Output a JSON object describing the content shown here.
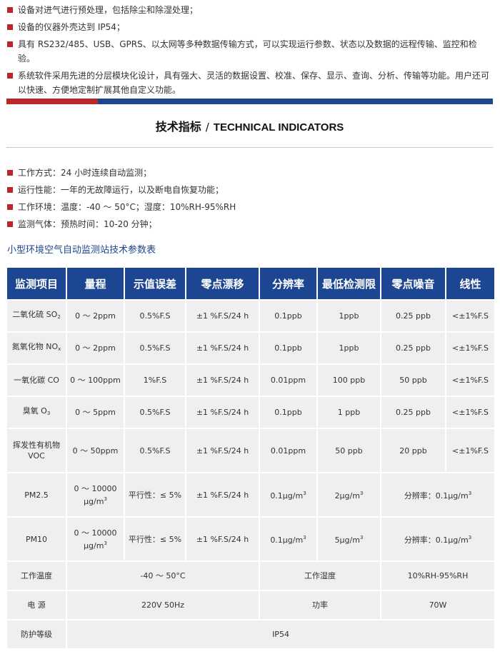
{
  "top_bullets": [
    "设备对进气进行预处理，包括除尘和除湿处理；",
    "设备的仪器外壳达到 IP54；",
    "具有 RS232/485、USB、GPRS、以太网等多种数据传输方式，可以实现运行参数、状态以及数据的远程传输、监控和检验。",
    "系统软件采用先进的分层模块化设计，具有强大、灵活的数据设置、校准、保存、显示、查询、分析、传输等功能。用户还可以快速、方便地定制扩展其他自定义功能。"
  ],
  "section": {
    "title_cn": "技术指标",
    "slash": "/",
    "title_en": "TECHNICAL INDICATORS"
  },
  "mid_bullets": [
    "工作方式：24 小时连续自动监测；",
    "运行性能：一年的无故障运行，以及断电自恢复功能；",
    "工作环境：温度：-40 ～ 50°C；湿度：10%RH-95%RH",
    "监测气体：预热时间：10-20 分钟；"
  ],
  "table_caption": "小型环境空气自动监测站技术参数表",
  "table": {
    "headers": [
      "监测项目",
      "量程",
      "示值误差",
      "零点漂移",
      "分辨率",
      "最低检测限",
      "零点噪音",
      "线性"
    ],
    "so2": {
      "name": "二氧化硫 SO",
      "name_sub": "2",
      "range": "0 ～ 2ppm",
      "error": "0.5%F.S",
      "drift": "±1 %F.S/24 h",
      "resolution": "0.1ppb",
      "lod": "1ppb",
      "noise": "0.25 ppb",
      "linearity": "<±1%F.S"
    },
    "nox": {
      "name": "氮氧化物 NO",
      "name_sub": "x",
      "range": "0 ～ 2ppm",
      "error": "0.5%F.S",
      "drift": "±1 %F.S/24 h",
      "resolution": "0.1ppb",
      "lod": "1ppb",
      "noise": "0.25 ppb",
      "linearity": "<±1%F.S"
    },
    "co": {
      "name": "一氧化碳 CO",
      "range": "0 ～ 100ppm",
      "error": "1%F.S",
      "drift": "±1 %F.S/24 h",
      "resolution": "0.01ppm",
      "lod": "100 ppb",
      "noise": "50 ppb",
      "linearity": "<±1%F.S"
    },
    "o3": {
      "name": "臭氧 O",
      "name_sub": "3",
      "range": "0 ～ 5ppm",
      "error": "0.5%F.S",
      "drift": "±1 %F.S/24 h",
      "resolution": "0.1ppb",
      "lod": "1 ppb",
      "noise": "0.25 ppb",
      "linearity": "<±1%F.S"
    },
    "voc": {
      "name": "挥发性有机物 VOC",
      "range": "0 ～ 50ppm",
      "error": "0.5%F.S",
      "drift": "±1 %F.S/24 h",
      "resolution": "0.01ppm",
      "lod": "50 ppb",
      "noise": "20 ppb",
      "linearity": "<±1%F.S"
    },
    "pm25": {
      "name": "PM2.5",
      "range_line1": "0 ～ 10000",
      "range_unit": "μg/m",
      "range_unit_sup": "3",
      "error": "平行性：≤ 5%",
      "drift": "±1 %F.S/24 h",
      "resolution": "0.1μg/m",
      "resolution_sup": "3",
      "lod": "2μg/m",
      "lod_sup": "3",
      "extra": "分辨率：0.1μg/m",
      "extra_sup": "3"
    },
    "pm10": {
      "name": "PM10",
      "range_line1": "0 ～ 10000",
      "range_unit": "μg/m",
      "range_unit_sup": "3",
      "error": "平行性：≤ 5%",
      "drift": "±1 %F.S/24 h",
      "resolution": "0.1μg/m",
      "resolution_sup": "3",
      "lod": "5μg/m",
      "lod_sup": "3",
      "extra": "分辨率：0.1μg/m",
      "extra_sup": "3"
    },
    "temp_row": {
      "label": "工作温度",
      "value": "-40 ～ 50°C",
      "label2": "工作湿度",
      "value2": "10%RH-95%RH"
    },
    "power_row": {
      "label": "电 源",
      "value": "220V 50Hz",
      "label2": "功率",
      "value2": "70W"
    },
    "ip_row": {
      "label": "防护等级",
      "value": "IP54"
    }
  },
  "colors": {
    "accent_red": "#b8282c",
    "header_blue": "#1d4692",
    "cell_bg": "#efeff1"
  }
}
